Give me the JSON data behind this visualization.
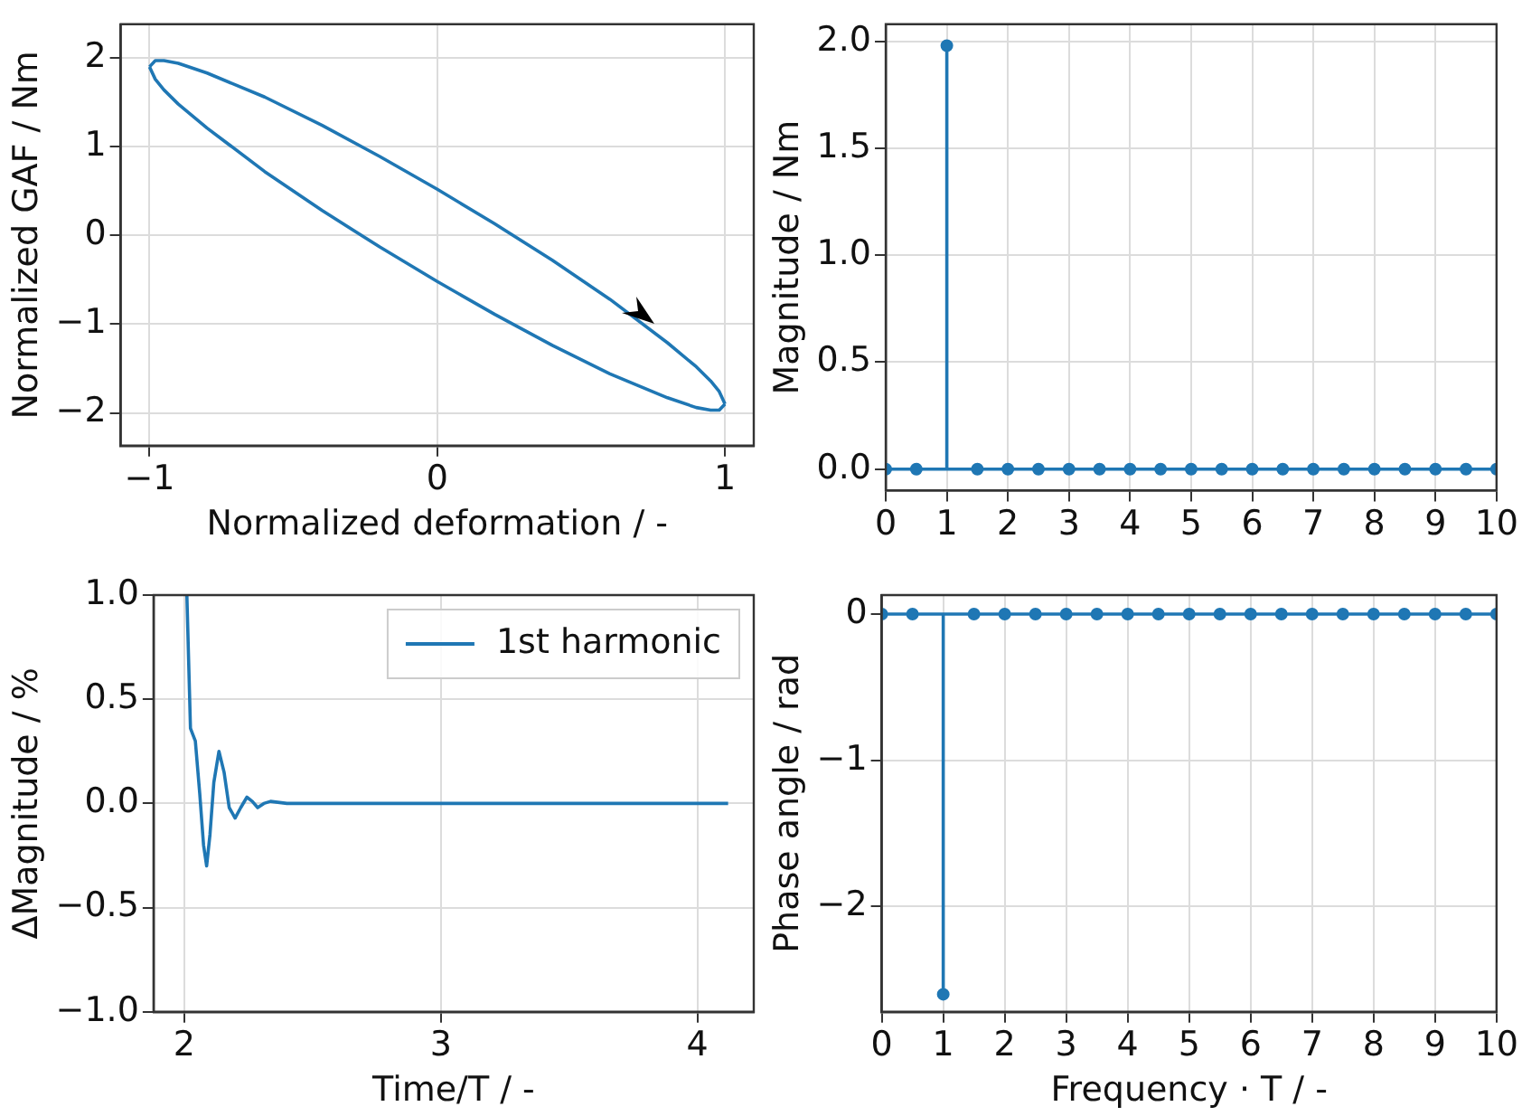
{
  "chart_data": [
    {
      "type": "line",
      "xlabel": "Normalized deformation / -",
      "ylabel": "Normalized GAF / Nm",
      "xlim": [
        -1.1,
        1.1
      ],
      "ylim": [
        -2.37,
        2.38
      ],
      "xticks": [
        {
          "value": -1,
          "label": "−1"
        },
        0,
        1
      ],
      "yticks": [
        {
          "value": -2,
          "label": "−2"
        },
        {
          "value": -1,
          "label": "−1"
        },
        0,
        1,
        2
      ],
      "grid": true,
      "series": [
        {
          "color": "#1f77b4",
          "x": [
            -1,
            -0.98,
            -0.95,
            -0.9,
            -0.8,
            -0.6,
            -0.4,
            -0.2,
            0,
            0.2,
            0.4,
            0.6,
            0.8,
            0.9,
            0.95,
            0.98,
            1
          ],
          "values": [
            1.9,
            1.97,
            1.97,
            1.94,
            1.83,
            1.56,
            1.24,
            0.89,
            0.52,
            0.13,
            -0.28,
            -0.72,
            -1.21,
            -1.48,
            -1.64,
            -1.76,
            -1.9
          ]
        },
        {
          "color": "#1f77b4",
          "x": [
            1,
            0.98,
            0.95,
            0.9,
            0.8,
            0.6,
            0.4,
            0.2,
            0,
            -0.2,
            -0.4,
            -0.6,
            -0.8,
            -0.9,
            -0.95,
            -0.98,
            -1
          ],
          "values": [
            -1.9,
            -1.97,
            -1.97,
            -1.94,
            -1.83,
            -1.56,
            -1.24,
            -0.89,
            -0.52,
            -0.13,
            0.28,
            0.72,
            1.21,
            1.48,
            1.64,
            1.76,
            1.9
          ]
        }
      ]
    },
    {
      "type": "lollipop",
      "ylabel": "Magnitude / Nm",
      "xlim": [
        0,
        10
      ],
      "ylim": [
        -0.1,
        2.08
      ],
      "xticks": [
        0,
        1,
        2,
        3,
        4,
        5,
        6,
        7,
        8,
        9,
        10
      ],
      "yticks": [
        {
          "value": 0,
          "label": "0.0"
        },
        {
          "value": 0.5,
          "label": "0.5"
        },
        {
          "value": 1,
          "label": "1.0"
        },
        {
          "value": 1.5,
          "label": "1.5"
        },
        {
          "value": 2,
          "label": "2.0"
        }
      ],
      "grid": true,
      "marker": "circle",
      "x": [
        0,
        0.5,
        1,
        1.5,
        2,
        2.5,
        3,
        3.5,
        4,
        4.5,
        5,
        5.5,
        6,
        6.5,
        7,
        7.5,
        8,
        8.5,
        9,
        9.5,
        10
      ],
      "series": [
        {
          "color": "#1f77b4",
          "values": [
            0,
            0,
            1.98,
            0,
            0,
            0,
            0,
            0,
            0,
            0,
            0,
            0,
            0,
            0,
            0,
            0,
            0,
            0,
            0,
            0,
            0
          ]
        }
      ]
    },
    {
      "type": "line",
      "xlabel": "Time/T / -",
      "ylabel": "ΔMagnitude / %",
      "xlim": [
        1.88,
        4.22
      ],
      "ylim": [
        -1,
        1
      ],
      "xticks": [
        2,
        3,
        4
      ],
      "yticks": [
        {
          "value": -1,
          "label": "−1.0"
        },
        {
          "value": -0.5,
          "label": "−0.5"
        },
        {
          "value": 0,
          "label": "0.0"
        },
        {
          "value": 0.5,
          "label": "0.5"
        },
        {
          "value": 1,
          "label": "1.0"
        }
      ],
      "grid": true,
      "legend": "top right",
      "series": [
        {
          "name": "1st harmonic",
          "color": "#1f77b4",
          "x": [
            2.01,
            2.024,
            2.043,
            2.06,
            2.075,
            2.087,
            2.1,
            2.115,
            2.135,
            2.155,
            2.175,
            2.198,
            2.22,
            2.244,
            2.265,
            2.286,
            2.31,
            2.336,
            2.4,
            2.5,
            2.7,
            2.8,
            3,
            3.5,
            4,
            4.12
          ],
          "values": [
            1,
            0.36,
            0.3,
            0.05,
            -0.2,
            -0.3,
            -0.15,
            0.1,
            0.25,
            0.15,
            -0.02,
            -0.07,
            -0.02,
            0.03,
            0.01,
            -0.02,
            0,
            0.01,
            0,
            0,
            0,
            0,
            0,
            0,
            0,
            0
          ]
        }
      ]
    },
    {
      "type": "lollipop",
      "xlabel": "Frequency · T / -",
      "ylabel": "Phase angle / rad",
      "xlim": [
        0,
        10
      ],
      "ylim": [
        -2.72,
        0.13
      ],
      "xticks": [
        0,
        1,
        2,
        3,
        4,
        5,
        6,
        7,
        8,
        9,
        10
      ],
      "yticks": [
        {
          "value": -2,
          "label": "−2"
        },
        {
          "value": -1,
          "label": "−1"
        },
        0
      ],
      "grid": true,
      "marker": "circle",
      "x": [
        0,
        0.5,
        1,
        1.5,
        2,
        2.5,
        3,
        3.5,
        4,
        4.5,
        5,
        5.5,
        6,
        6.5,
        7,
        7.5,
        8,
        8.5,
        9,
        9.5,
        10
      ],
      "series": [
        {
          "color": "#1f77b4",
          "values": [
            0,
            0,
            -2.6,
            0,
            0,
            0,
            0,
            0,
            0,
            0,
            0,
            0,
            0,
            0,
            0,
            0,
            0,
            0,
            0,
            0,
            0
          ]
        }
      ]
    }
  ]
}
